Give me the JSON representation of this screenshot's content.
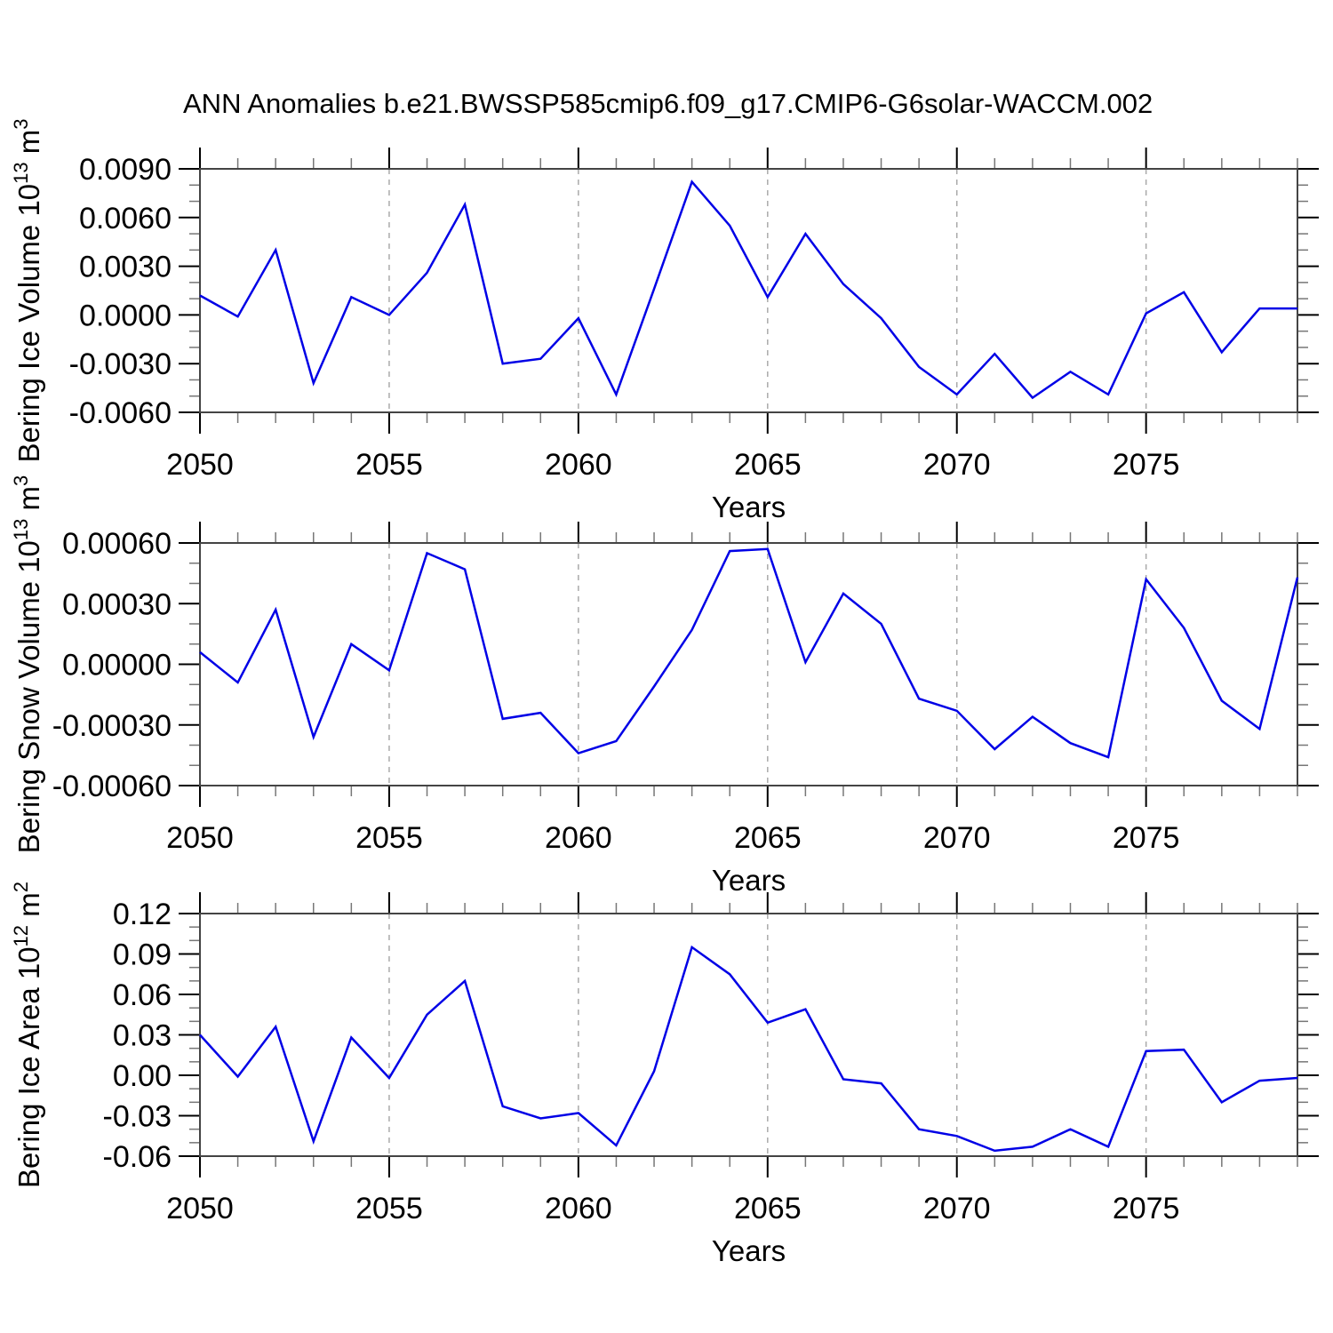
{
  "title": "ANN Anomalies b.e21.BWSSP585cmip6.f09_g17.CMIP6-G6solar-WACCM.002",
  "colors": {
    "line": "#0000e6",
    "frame": "#444444",
    "major_tick": "#000000",
    "minor_tick": "#777777",
    "grid": "#aaaaaa",
    "text": "#000000"
  },
  "chart_data": [
    {
      "type": "line",
      "name": "bering-ice-volume",
      "ylabel_parts": [
        {
          "t": "Bering Ice Volume 10"
        },
        {
          "t": "13",
          "sup": true
        },
        {
          "t": " m"
        },
        {
          "t": "3",
          "sup": true
        }
      ],
      "xlabel": "Years",
      "x": [
        2050,
        2051,
        2052,
        2053,
        2054,
        2055,
        2056,
        2057,
        2058,
        2059,
        2060,
        2061,
        2062,
        2063,
        2064,
        2065,
        2066,
        2067,
        2068,
        2069,
        2070,
        2071,
        2072,
        2073,
        2074,
        2075,
        2076,
        2077,
        2078,
        2079
      ],
      "values": [
        0.0012,
        -0.0001,
        0.004,
        -0.0042,
        0.0011,
        0.0,
        0.0026,
        0.0068,
        -0.003,
        -0.0027,
        -0.0002,
        -0.0049,
        0.0016,
        0.0082,
        0.0055,
        0.0011,
        0.005,
        0.0019,
        -0.0002,
        -0.0032,
        -0.0049,
        -0.0024,
        -0.0051,
        -0.0035,
        -0.0049,
        0.0001,
        0.0014,
        -0.0023,
        0.0004,
        0.0004
      ],
      "ylim": [
        -0.006,
        0.009
      ],
      "yticks": [
        {
          "v": 0.009,
          "label": "0.0090"
        },
        {
          "v": 0.006,
          "label": "0.0060"
        },
        {
          "v": 0.003,
          "label": "0.0030"
        },
        {
          "v": 0.0,
          "label": "0.0000"
        },
        {
          "v": -0.003,
          "label": "-0.0030"
        },
        {
          "v": -0.006,
          "label": "-0.0060"
        }
      ],
      "y_minor_step": 0.001,
      "xticks_major": [
        2050,
        2055,
        2060,
        2065,
        2070,
        2075
      ],
      "x_minor_step": 1,
      "grid_years": [
        2055,
        2060,
        2065,
        2070,
        2075
      ],
      "xlim": [
        2050,
        2079
      ]
    },
    {
      "type": "line",
      "name": "bering-snow-volume",
      "ylabel_parts": [
        {
          "t": "Bering Snow Volume 10"
        },
        {
          "t": "13",
          "sup": true
        },
        {
          "t": " m"
        },
        {
          "t": "3",
          "sup": true
        }
      ],
      "xlabel": "Years",
      "x": [
        2050,
        2051,
        2052,
        2053,
        2054,
        2055,
        2056,
        2057,
        2058,
        2059,
        2060,
        2061,
        2062,
        2063,
        2064,
        2065,
        2066,
        2067,
        2068,
        2069,
        2070,
        2071,
        2072,
        2073,
        2074,
        2075,
        2076,
        2077,
        2078,
        2079
      ],
      "values": [
        6e-05,
        -9e-05,
        0.00027,
        -0.00036,
        0.0001,
        -3e-05,
        0.00055,
        0.00047,
        -0.00027,
        -0.00024,
        -0.00044,
        -0.00038,
        -0.00011,
        0.00017,
        0.00056,
        0.00057,
        1e-05,
        0.00035,
        0.0002,
        -0.00017,
        -0.00023,
        -0.00042,
        -0.00026,
        -0.00039,
        -0.00046,
        0.00042,
        0.00018,
        -0.00018,
        -0.00032,
        0.00043
      ],
      "ylim": [
        -0.0006,
        0.0006
      ],
      "yticks": [
        {
          "v": 0.0006,
          "label": "0.00060"
        },
        {
          "v": 0.0003,
          "label": "0.00030"
        },
        {
          "v": 0.0,
          "label": "0.00000"
        },
        {
          "v": -0.0003,
          "label": "-0.00030"
        },
        {
          "v": -0.0006,
          "label": "-0.00060"
        }
      ],
      "y_minor_step": 0.0001,
      "xticks_major": [
        2050,
        2055,
        2060,
        2065,
        2070,
        2075
      ],
      "x_minor_step": 1,
      "grid_years": [
        2055,
        2060,
        2065,
        2070,
        2075
      ],
      "xlim": [
        2050,
        2079
      ]
    },
    {
      "type": "line",
      "name": "bering-ice-area",
      "ylabel_parts": [
        {
          "t": "Bering Ice Area 10"
        },
        {
          "t": "12",
          "sup": true
        },
        {
          "t": " m"
        },
        {
          "t": "2",
          "sup": true
        }
      ],
      "xlabel": "Years",
      "x": [
        2050,
        2051,
        2052,
        2053,
        2054,
        2055,
        2056,
        2057,
        2058,
        2059,
        2060,
        2061,
        2062,
        2063,
        2064,
        2065,
        2066,
        2067,
        2068,
        2069,
        2070,
        2071,
        2072,
        2073,
        2074,
        2075,
        2076,
        2077,
        2078,
        2079
      ],
      "values": [
        0.03,
        -0.001,
        0.036,
        -0.049,
        0.028,
        -0.002,
        0.045,
        0.07,
        -0.023,
        -0.032,
        -0.028,
        -0.052,
        0.003,
        0.095,
        0.075,
        0.039,
        0.049,
        -0.003,
        -0.006,
        -0.04,
        -0.045,
        -0.056,
        -0.053,
        -0.04,
        -0.053,
        0.018,
        0.019,
        -0.02,
        -0.004,
        -0.002
      ],
      "ylim": [
        -0.06,
        0.12
      ],
      "yticks": [
        {
          "v": 0.12,
          "label": "0.12"
        },
        {
          "v": 0.09,
          "label": "0.09"
        },
        {
          "v": 0.06,
          "label": "0.06"
        },
        {
          "v": 0.03,
          "label": "0.03"
        },
        {
          "v": 0.0,
          "label": "0.00"
        },
        {
          "v": -0.03,
          "label": "-0.03"
        },
        {
          "v": -0.06,
          "label": "-0.06"
        }
      ],
      "y_minor_step": 0.01,
      "xticks_major": [
        2050,
        2055,
        2060,
        2065,
        2070,
        2075
      ],
      "x_minor_step": 1,
      "grid_years": [
        2055,
        2060,
        2065,
        2070,
        2075
      ],
      "xlim": [
        2050,
        2079
      ]
    }
  ]
}
